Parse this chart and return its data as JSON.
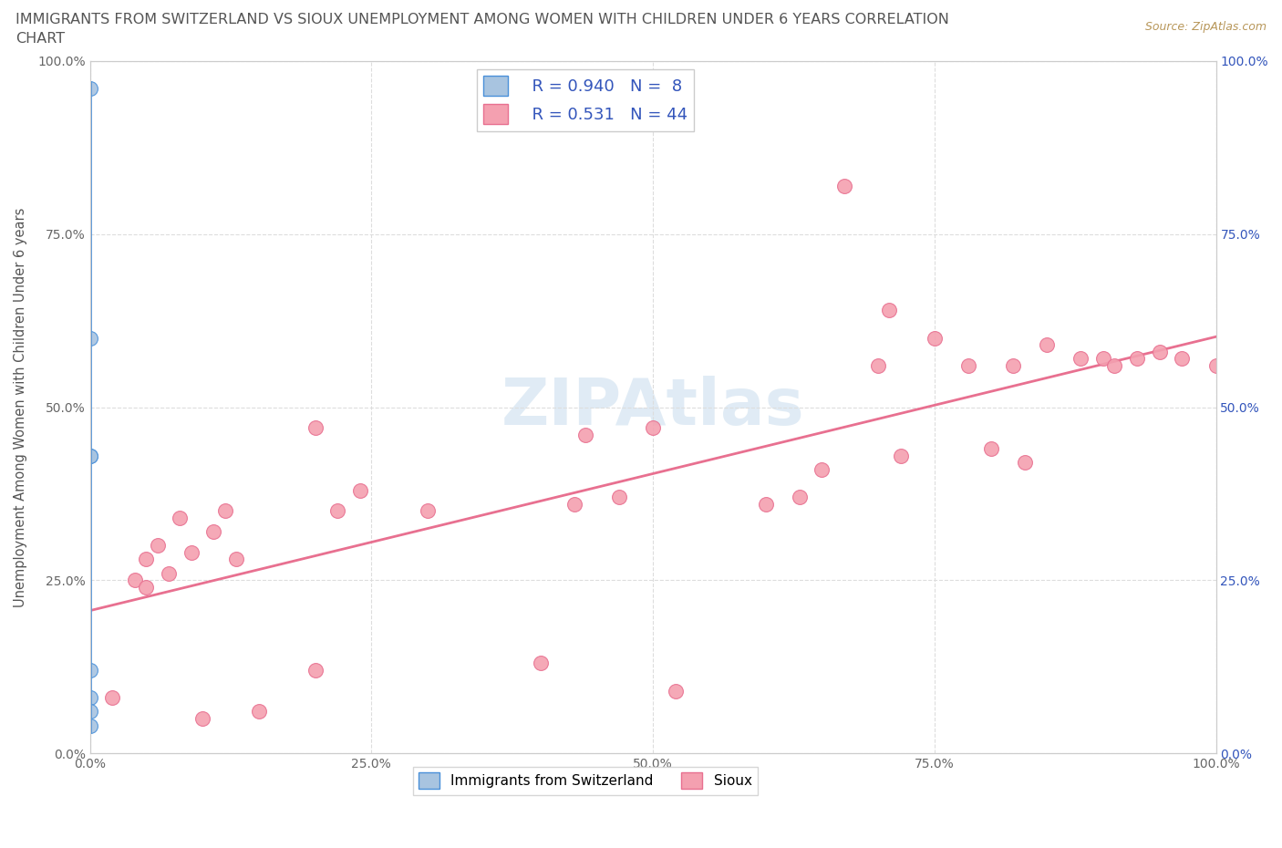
{
  "title_line1": "IMMIGRANTS FROM SWITZERLAND VS SIOUX UNEMPLOYMENT AMONG WOMEN WITH CHILDREN UNDER 6 YEARS CORRELATION",
  "title_line2": "CHART",
  "source": "Source: ZipAtlas.com",
  "ylabel": "Unemployment Among Women with Children Under 6 years",
  "xlim": [
    0,
    1.0
  ],
  "ylim": [
    0,
    1.0
  ],
  "xtick_labels": [
    "0.0%",
    "25.0%",
    "50.0%",
    "75.0%",
    "100.0%"
  ],
  "xtick_vals": [
    0.0,
    0.25,
    0.5,
    0.75,
    1.0
  ],
  "ytick_labels": [
    "0.0%",
    "25.0%",
    "50.0%",
    "75.0%",
    "100.0%"
  ],
  "ytick_vals": [
    0.0,
    0.25,
    0.5,
    0.75,
    1.0
  ],
  "swiss_R": 0.94,
  "swiss_N": 8,
  "sioux_R": 0.531,
  "sioux_N": 44,
  "swiss_color": "#a8c4e0",
  "sioux_color": "#f4a0b0",
  "swiss_line_color": "#4a90d9",
  "sioux_line_color": "#e87090",
  "legend_R_color": "#3355bb",
  "swiss_scatter_x": [
    0.0,
    0.0,
    0.0,
    0.0,
    0.0,
    0.0,
    0.0,
    0.0
  ],
  "swiss_scatter_y": [
    0.96,
    0.6,
    0.43,
    0.43,
    0.12,
    0.08,
    0.06,
    0.04
  ],
  "swiss_line_y": [
    0.03,
    0.97
  ],
  "sioux_scatter_x": [
    0.02,
    0.04,
    0.05,
    0.05,
    0.06,
    0.07,
    0.08,
    0.09,
    0.1,
    0.11,
    0.12,
    0.13,
    0.15,
    0.2,
    0.2,
    0.22,
    0.24,
    0.3,
    0.4,
    0.43,
    0.44,
    0.47,
    0.5,
    0.52,
    0.6,
    0.63,
    0.65,
    0.67,
    0.7,
    0.71,
    0.72,
    0.75,
    0.78,
    0.8,
    0.82,
    0.83,
    0.85,
    0.88,
    0.9,
    0.91,
    0.93,
    0.95,
    0.97,
    1.0
  ],
  "sioux_scatter_y": [
    0.08,
    0.25,
    0.24,
    0.28,
    0.3,
    0.26,
    0.34,
    0.29,
    0.05,
    0.32,
    0.35,
    0.28,
    0.06,
    0.12,
    0.47,
    0.35,
    0.38,
    0.35,
    0.13,
    0.36,
    0.46,
    0.37,
    0.47,
    0.09,
    0.36,
    0.37,
    0.41,
    0.82,
    0.56,
    0.64,
    0.43,
    0.6,
    0.56,
    0.44,
    0.56,
    0.42,
    0.59,
    0.57,
    0.57,
    0.56,
    0.57,
    0.58,
    0.57,
    0.56
  ],
  "background_color": "#ffffff",
  "grid_color": "#dddddd"
}
